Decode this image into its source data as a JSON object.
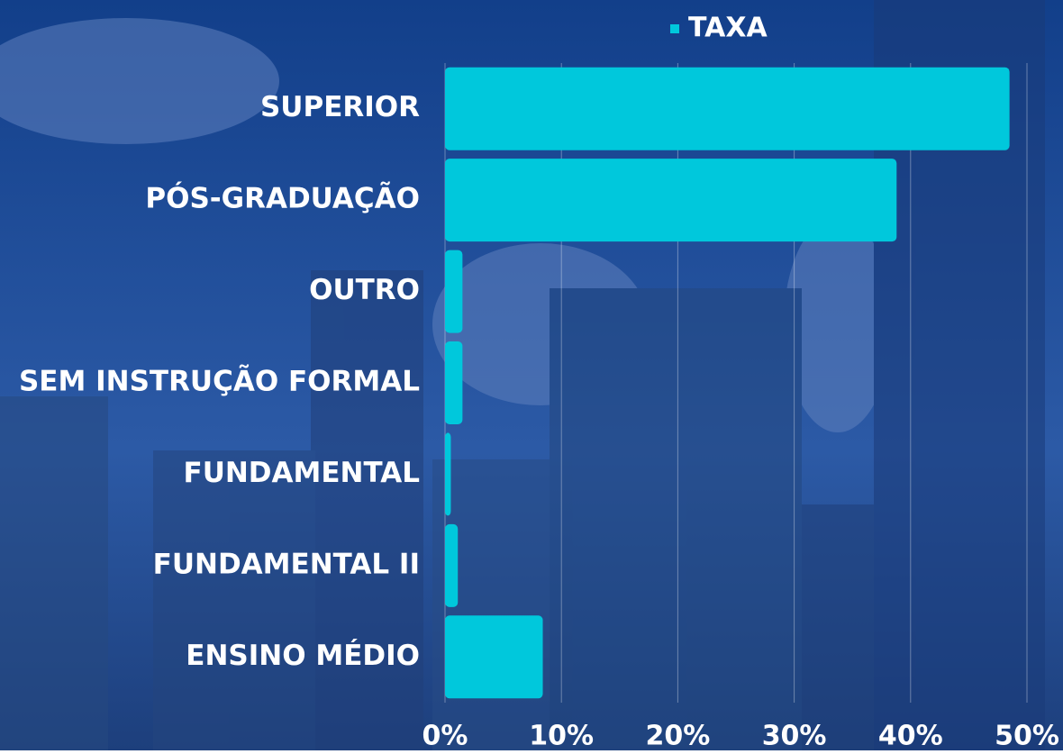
{
  "chart_data": {
    "type": "barh",
    "categories": [
      "SUPERIOR",
      "PÓS-GRADUAÇÃO",
      "OUTRO",
      "SEM INSTRUÇÃO FORMAL",
      "FUNDAMENTAL",
      "FUNDAMENTAL II",
      "ENSINO MÉDIO"
    ],
    "series": [
      {
        "name": "TAXA",
        "color": "#00c8dc",
        "values": [
          48.5,
          38.8,
          1.5,
          1.5,
          0.5,
          1.1,
          8.4
        ]
      }
    ],
    "xlim": [
      0,
      50
    ],
    "xticks": [
      {
        "value": 0,
        "label": "0%"
      },
      {
        "value": 10,
        "label": "10%"
      },
      {
        "value": 20,
        "label": "20%"
      },
      {
        "value": 30,
        "label": "30%"
      },
      {
        "value": 40,
        "label": "40%"
      },
      {
        "value": 50,
        "label": "50%"
      }
    ],
    "grid": true,
    "legend": "top"
  }
}
